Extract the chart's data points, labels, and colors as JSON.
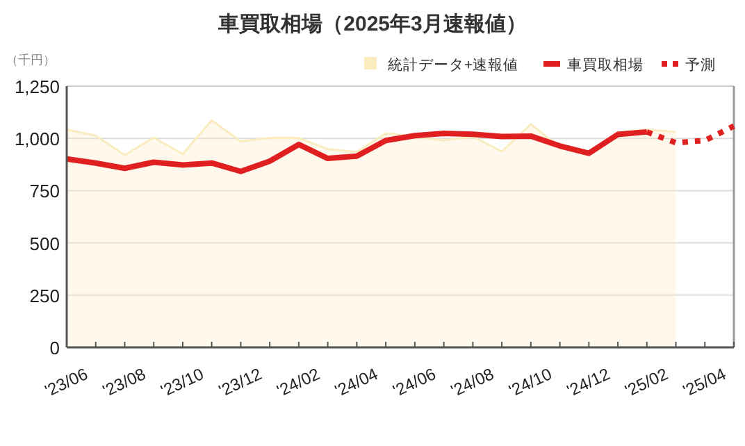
{
  "chart_data": {
    "type": "line",
    "title": "車買取相場（2025年3月速報値）",
    "ylabel": "（千円）",
    "categories": [
      "'23/06",
      null,
      "'23/08",
      null,
      "'23/10",
      null,
      "'23/12",
      null,
      "'24/02",
      null,
      "'24/04",
      null,
      "'24/06",
      null,
      "'24/08",
      null,
      "'24/10",
      null,
      "'24/12",
      null,
      "'25/02",
      null,
      "'25/04",
      null
    ],
    "ylim": [
      0,
      1250
    ],
    "yticks": [
      0,
      250,
      500,
      750,
      {
        "value": 1000,
        "label": "1,000"
      },
      {
        "value": 1250,
        "label": "1,250"
      }
    ],
    "grid": "y",
    "legend": "top right",
    "marker": "none",
    "series": [
      {
        "type": "area",
        "name": "統計データ+速報値",
        "color": "#fbecc0",
        "values": [
          1042,
          1013,
          920,
          1004,
          925,
          1086,
          986,
          1002,
          1002,
          949,
          935,
          1024,
          1009,
          990,
          1009,
          937,
          1068,
          957,
          931,
          1031,
          1042,
          1031,
          null,
          null
        ]
      },
      {
        "type": "line",
        "name": "車買取相場",
        "color": "#e02020",
        "line_style": "solid",
        "values": [
          902,
          882,
          857,
          886,
          873,
          882,
          842,
          891,
          971,
          904,
          915,
          990,
          1013,
          1024,
          1020,
          1009,
          1011,
          964,
          929,
          1019,
          1031,
          null,
          null,
          null
        ]
      },
      {
        "type": "line",
        "name": "予測",
        "color": "#e02020",
        "line_style": "dotted",
        "values": [
          null,
          null,
          null,
          null,
          null,
          null,
          null,
          null,
          null,
          null,
          null,
          null,
          null,
          null,
          null,
          null,
          null,
          null,
          null,
          null,
          1031,
          979,
          990,
          1059
        ]
      }
    ]
  }
}
